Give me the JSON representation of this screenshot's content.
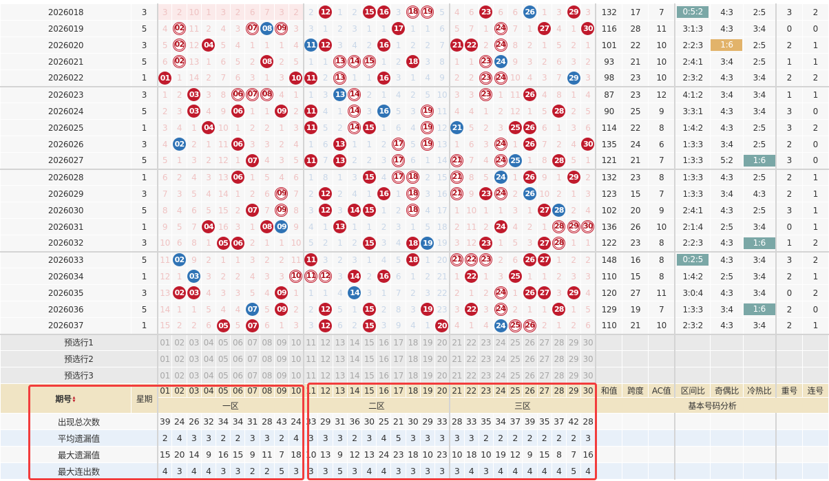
{
  "colors": {
    "red_ball": "#c01a2c",
    "blue_ball": "#2f73b5",
    "teal_highlight": "#7aa7a6",
    "orange_highlight": "#e2b36a",
    "annotation_box": "#f23c3c"
  },
  "legend": {
    "style_codes": {
      ".": "miss-count",
      "r": "solid-red-ball",
      "o": "outlined-red-ball",
      "b": "blue-ball"
    }
  },
  "rows": [
    {
      "period": "2026018",
      "week": "3",
      "cells": [
        "3",
        "2",
        "10",
        "1",
        "3",
        "2",
        "6",
        "7",
        "3",
        "2",
        "2",
        "12",
        "1",
        "2",
        "15",
        "16",
        "3",
        "18",
        "19",
        "5",
        "4",
        "6",
        "23",
        "6",
        "6",
        "26",
        "1",
        "3",
        "29",
        "3"
      ],
      "style": "...........r..rr.oo...r..b..r.",
      "stats": [
        "132",
        "17",
        "7",
        "0:5:2",
        "4:3",
        "2:5",
        "3",
        "2"
      ],
      "hl": {
        "col": 3,
        "color": "teal"
      }
    },
    {
      "period": "2026019",
      "week": "5",
      "cells": [
        "4",
        "02",
        "11",
        "2",
        "4",
        "3",
        "07",
        "08",
        "09",
        "3",
        "3",
        "1",
        "2",
        "3",
        "1",
        "1",
        "17",
        "1",
        "1",
        "6",
        "5",
        "7",
        "1",
        "24",
        "7",
        "1",
        "27",
        "4",
        "1",
        "30"
      ],
      "style": ".o....obo.......r......o..r..r",
      "stats": [
        "116",
        "28",
        "11",
        "3:1:3",
        "4:3",
        "3:4",
        "0",
        "0"
      ]
    },
    {
      "period": "2026020",
      "week": "3",
      "cells": [
        "5",
        "02",
        "12",
        "04",
        "5",
        "4",
        "1",
        "1",
        "1",
        "4",
        "11",
        "12",
        "3",
        "4",
        "2",
        "16",
        "1",
        "2",
        "2",
        "7",
        "21",
        "22",
        "2",
        "24",
        "8",
        "2",
        "1",
        "5",
        "2",
        "1"
      ],
      "style": ".o.r......br...r....rr.o......",
      "stats": [
        "101",
        "22",
        "10",
        "2:2:3",
        "1:6",
        "2:5",
        "2",
        "1"
      ],
      "hl": {
        "col": 4,
        "color": "orange"
      }
    },
    {
      "period": "2026021",
      "week": "5",
      "cells": [
        "6",
        "02",
        "13",
        "1",
        "6",
        "5",
        "2",
        "08",
        "2",
        "5",
        "1",
        "1",
        "13",
        "14",
        "15",
        "1",
        "2",
        "18",
        "3",
        "8",
        "1",
        "1",
        "23",
        "24",
        "9",
        "3",
        "2",
        "6",
        "3",
        "2"
      ],
      "style": ".o.....r....ooo..r....ob......",
      "stats": [
        "93",
        "21",
        "10",
        "2:4:1",
        "3:4",
        "2:5",
        "1",
        "1"
      ]
    },
    {
      "period": "2026022",
      "week": "1",
      "cells": [
        "01",
        "1",
        "14",
        "2",
        "7",
        "6",
        "3",
        "1",
        "3",
        "10",
        "11",
        "2",
        "13",
        "1",
        "1",
        "16",
        "3",
        "1",
        "4",
        "9",
        "2",
        "2",
        "23",
        "24",
        "10",
        "4",
        "3",
        "7",
        "29",
        "3"
      ],
      "style": "r........rr.o..r......oo....b.",
      "stats": [
        "98",
        "23",
        "10",
        "2:3:2",
        "4:3",
        "3:4",
        "2",
        "2"
      ]
    },
    {
      "period": "2026023",
      "week": "3",
      "cells": [
        "1",
        "2",
        "03",
        "3",
        "8",
        "06",
        "07",
        "08",
        "4",
        "1",
        "1",
        "3",
        "13",
        "14",
        "2",
        "1",
        "4",
        "2",
        "5",
        "10",
        "3",
        "3",
        "23",
        "1",
        "11",
        "26",
        "4",
        "8",
        "1",
        "4"
      ],
      "style": "..r..ooo....bo........o..r....",
      "stats": [
        "87",
        "23",
        "12",
        "4:1:2",
        "3:4",
        "3:4",
        "1",
        "1"
      ]
    },
    {
      "period": "2026024",
      "week": "5",
      "cells": [
        "2",
        "3",
        "03",
        "4",
        "9",
        "06",
        "1",
        "1",
        "09",
        "2",
        "11",
        "4",
        "1",
        "14",
        "3",
        "16",
        "5",
        "3",
        "19",
        "11",
        "4",
        "4",
        "1",
        "2",
        "12",
        "1",
        "5",
        "28",
        "2",
        "5"
      ],
      "style": "..r..r..r.r..o.b..o........r..",
      "stats": [
        "90",
        "25",
        "9",
        "3:3:1",
        "4:3",
        "3:4",
        "3",
        "0"
      ]
    },
    {
      "period": "2026025",
      "week": "1",
      "cells": [
        "3",
        "4",
        "1",
        "04",
        "10",
        "1",
        "2",
        "2",
        "1",
        "3",
        "11",
        "5",
        "2",
        "14",
        "15",
        "1",
        "6",
        "4",
        "19",
        "12",
        "21",
        "5",
        "2",
        "3",
        "25",
        "26",
        "6",
        "1",
        "3",
        "6"
      ],
      "style": "...r......r..or...o.b...rr....",
      "stats": [
        "114",
        "22",
        "8",
        "1:4:2",
        "4:3",
        "2:5",
        "3",
        "2"
      ]
    },
    {
      "period": "2026026",
      "week": "3",
      "cells": [
        "4",
        "02",
        "2",
        "1",
        "11",
        "06",
        "3",
        "3",
        "2",
        "4",
        "1",
        "6",
        "13",
        "1",
        "1",
        "2",
        "17",
        "5",
        "19",
        "13",
        "1",
        "6",
        "3",
        "24",
        "1",
        "26",
        "7",
        "2",
        "4",
        "30"
      ],
      "style": ".b...r......r...o.o....o.r...r",
      "stats": [
        "135",
        "24",
        "6",
        "1:3:3",
        "3:4",
        "2:5",
        "2",
        "0"
      ]
    },
    {
      "period": "2026027",
      "week": "5",
      "cells": [
        "5",
        "1",
        "3",
        "2",
        "12",
        "1",
        "07",
        "4",
        "3",
        "5",
        "11",
        "7",
        "13",
        "2",
        "2",
        "3",
        "17",
        "6",
        "1",
        "14",
        "21",
        "7",
        "4",
        "24",
        "25",
        "1",
        "8",
        "28",
        "5",
        "1"
      ],
      "style": "......r...r.r...o...o..ob..r..",
      "stats": [
        "121",
        "21",
        "7",
        "1:3:3",
        "5:2",
        "1:6",
        "3",
        "0"
      ],
      "hl": {
        "col": 5,
        "color": "teal"
      }
    },
    {
      "period": "2026028",
      "week": "1",
      "cells": [
        "6",
        "2",
        "4",
        "3",
        "13",
        "06",
        "1",
        "5",
        "4",
        "6",
        "1",
        "8",
        "1",
        "3",
        "15",
        "4",
        "17",
        "18",
        "2",
        "15",
        "21",
        "8",
        "5",
        "24",
        "1",
        "26",
        "9",
        "1",
        "29",
        "2"
      ],
      "style": ".....r........r.oo..o..b.r..r.",
      "stats": [
        "132",
        "23",
        "8",
        "1:3:3",
        "4:3",
        "2:5",
        "2",
        "1"
      ]
    },
    {
      "period": "2026029",
      "week": "3",
      "cells": [
        "7",
        "3",
        "5",
        "4",
        "14",
        "1",
        "2",
        "6",
        "09",
        "7",
        "2",
        "12",
        "2",
        "4",
        "1",
        "16",
        "1",
        "18",
        "3",
        "16",
        "21",
        "9",
        "23",
        "24",
        "2",
        "26",
        "10",
        "2",
        "1",
        "3"
      ],
      "style": "........o..r...r.o..o.ro.b....",
      "stats": [
        "123",
        "15",
        "7",
        "1:3:3",
        "3:4",
        "4:3",
        "2",
        "1"
      ]
    },
    {
      "period": "2026030",
      "week": "5",
      "cells": [
        "8",
        "4",
        "6",
        "5",
        "15",
        "2",
        "07",
        "7",
        "09",
        "8",
        "3",
        "12",
        "3",
        "14",
        "15",
        "1",
        "2",
        "18",
        "4",
        "17",
        "1",
        "10",
        "1",
        "1",
        "3",
        "1",
        "27",
        "28",
        "2",
        "4"
      ],
      "style": "......r.o..r.rr..o........rb..",
      "stats": [
        "102",
        "20",
        "9",
        "2:4:1",
        "4:3",
        "2:5",
        "3",
        "1"
      ]
    },
    {
      "period": "2026031",
      "week": "1",
      "cells": [
        "9",
        "5",
        "7",
        "04",
        "16",
        "3",
        "1",
        "08",
        "09",
        "9",
        "4",
        "1",
        "13",
        "1",
        "1",
        "2",
        "3",
        "1",
        "5",
        "18",
        "2",
        "11",
        "2",
        "24",
        "4",
        "2",
        "1",
        "28",
        "29",
        "30"
      ],
      "style": "...r...rb...r..........r...ooo",
      "stats": [
        "136",
        "26",
        "10",
        "2:1:4",
        "2:5",
        "3:4",
        "0",
        "1"
      ]
    },
    {
      "period": "2026032",
      "week": "3",
      "cells": [
        "10",
        "6",
        "8",
        "1",
        "05",
        "06",
        "2",
        "1",
        "1",
        "10",
        "5",
        "2",
        "1",
        "2",
        "15",
        "3",
        "4",
        "18",
        "19",
        "19",
        "3",
        "12",
        "23",
        "1",
        "5",
        "3",
        "27",
        "28",
        "1",
        "1"
      ],
      "style": "....rr........r..rb...r...ro..",
      "stats": [
        "122",
        "23",
        "8",
        "2:2:3",
        "4:3",
        "1:6",
        "1",
        "2"
      ],
      "hl": {
        "col": 5,
        "color": "teal"
      }
    },
    {
      "period": "2026033",
      "week": "5",
      "cells": [
        "11",
        "02",
        "9",
        "2",
        "1",
        "1",
        "3",
        "2",
        "2",
        "11",
        "11",
        "3",
        "2",
        "3",
        "1",
        "4",
        "5",
        "18",
        "1",
        "20",
        "21",
        "22",
        "23",
        "2",
        "6",
        "26",
        "27",
        "1",
        "2",
        "2"
      ],
      "style": ".b........r......r..ooo..rr...",
      "stats": [
        "148",
        "16",
        "8",
        "0:2:5",
        "4:3",
        "3:4",
        "3",
        "2"
      ],
      "hl": {
        "col": 3,
        "color": "teal"
      }
    },
    {
      "period": "2026034",
      "week": "1",
      "cells": [
        "12",
        "1",
        "03",
        "3",
        "2",
        "2",
        "4",
        "3",
        "3",
        "10",
        "11",
        "12",
        "3",
        "14",
        "2",
        "16",
        "6",
        "1",
        "2",
        "21",
        "1",
        "22",
        "1",
        "3",
        "25",
        "1",
        "1",
        "2",
        "3",
        "3"
      ],
      "style": "..b......ooo.r.r.....r..r.....",
      "stats": [
        "110",
        "15",
        "8",
        "1:4:2",
        "2:5",
        "3:4",
        "2",
        "1"
      ]
    },
    {
      "period": "2026035",
      "week": "3",
      "cells": [
        "13",
        "02",
        "03",
        "4",
        "3",
        "3",
        "5",
        "4",
        "09",
        "1",
        "1",
        "1",
        "4",
        "14",
        "3",
        "1",
        "7",
        "2",
        "3",
        "22",
        "2",
        "1",
        "2",
        "24",
        "1",
        "26",
        "27",
        "3",
        "29",
        "4"
      ],
      "style": ".rr.....r....b.........o.rr.r.",
      "stats": [
        "120",
        "27",
        "11",
        "3:0:4",
        "4:3",
        "3:4",
        "0",
        "2"
      ]
    },
    {
      "period": "2026036",
      "week": "5",
      "cells": [
        "14",
        "1",
        "1",
        "5",
        "4",
        "4",
        "07",
        "5",
        "09",
        "2",
        "2",
        "12",
        "5",
        "1",
        "15",
        "2",
        "8",
        "3",
        "19",
        "23",
        "3",
        "22",
        "3",
        "24",
        "2",
        "1",
        "1",
        "28",
        "1",
        "5"
      ],
      "style": "......b.r..r..r...r..r.o...r..",
      "stats": [
        "129",
        "19",
        "7",
        "1:3:3",
        "3:4",
        "1:6",
        "2",
        "0"
      ],
      "hl": {
        "col": 5,
        "color": "teal"
      }
    },
    {
      "period": "2026037",
      "week": "1",
      "cells": [
        "15",
        "2",
        "2",
        "6",
        "05",
        "5",
        "07",
        "6",
        "1",
        "3",
        "3",
        "12",
        "6",
        "2",
        "15",
        "3",
        "9",
        "4",
        "1",
        "20",
        "4",
        "1",
        "4",
        "24",
        "25",
        "26",
        "2",
        "1",
        "2",
        "6"
      ],
      "style": "....r.r....r..r....r...boo....",
      "stats": [
        "110",
        "21",
        "10",
        "2:3:2",
        "4:3",
        "3:4",
        "2",
        "1"
      ]
    }
  ],
  "preselect": {
    "labels": [
      "预选行1",
      "预选行2",
      "预选行3"
    ],
    "numbers": [
      "01",
      "02",
      "03",
      "04",
      "05",
      "06",
      "07",
      "08",
      "09",
      "10",
      "11",
      "12",
      "13",
      "14",
      "15",
      "16",
      "17",
      "18",
      "19",
      "20",
      "21",
      "22",
      "23",
      "24",
      "25",
      "26",
      "27",
      "28",
      "29",
      "30"
    ]
  },
  "header": {
    "period": "期号",
    "sort_icon": "▲▼",
    "week": "星期",
    "zones": [
      "一区",
      "二区",
      "三区"
    ],
    "stat_cols": [
      "和值",
      "跨度",
      "AC值",
      "区间比",
      "奇偶比",
      "冷热比",
      "重号",
      "连号"
    ],
    "analysis": "基本号码分析"
  },
  "summary": [
    {
      "label": "出现总次数",
      "values": [
        "39",
        "24",
        "26",
        "32",
        "34",
        "34",
        "31",
        "28",
        "43",
        "24",
        "33",
        "29",
        "31",
        "36",
        "30",
        "25",
        "21",
        "30",
        "29",
        "33",
        "28",
        "33",
        "35",
        "34",
        "37",
        "39",
        "35",
        "37",
        "42",
        "28"
      ]
    },
    {
      "label": "平均遗漏值",
      "values": [
        "2",
        "4",
        "3",
        "3",
        "2",
        "2",
        "3",
        "3",
        "2",
        "4",
        "3",
        "3",
        "3",
        "2",
        "3",
        "4",
        "5",
        "3",
        "3",
        "3",
        "3",
        "3",
        "2",
        "2",
        "2",
        "2",
        "2",
        "2",
        "2",
        "3"
      ]
    },
    {
      "label": "最大遗漏值",
      "values": [
        "15",
        "20",
        "14",
        "9",
        "16",
        "15",
        "9",
        "11",
        "7",
        "18",
        "10",
        "13",
        "9",
        "12",
        "13",
        "24",
        "23",
        "18",
        "10",
        "23",
        "10",
        "18",
        "10",
        "19",
        "12",
        "9",
        "15",
        "8",
        "7",
        "16"
      ]
    },
    {
      "label": "最大连出数",
      "values": [
        "4",
        "3",
        "4",
        "4",
        "3",
        "3",
        "2",
        "2",
        "5",
        "3",
        "3",
        "3",
        "5",
        "3",
        "4",
        "4",
        "3",
        "3",
        "3",
        "3",
        "3",
        "4",
        "3",
        "4",
        "4",
        "4",
        "4",
        "4",
        "5",
        "4"
      ]
    }
  ]
}
